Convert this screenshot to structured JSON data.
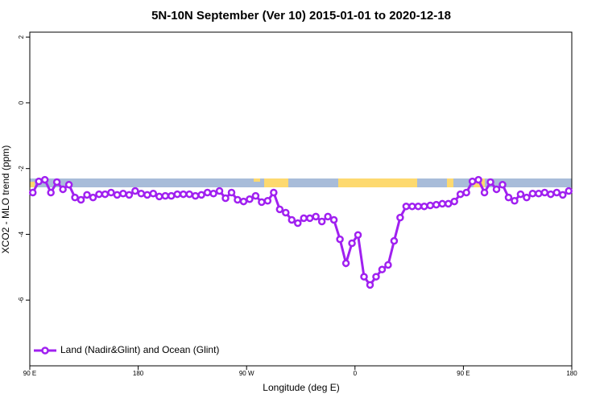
{
  "chart_data": {
    "type": "line",
    "title": "5N-10N September (Ver 10)   2015-01-01 to 2020-12-18",
    "xlabel": "Longitude (deg E)",
    "ylabel": "XCO2 - MLO trend (ppm)",
    "xlim": [
      90,
      540
    ],
    "xticks": [
      {
        "value": 90,
        "label": "90 E"
      },
      180,
      {
        "value": 270,
        "label": "90 W"
      },
      {
        "value": 360,
        "label": "0"
      },
      {
        "value": 450,
        "label": "90 E"
      },
      {
        "value": 540,
        "label": "180"
      }
    ],
    "ylim": [
      -8,
      2.15
    ],
    "yticks": [
      2,
      0,
      -2,
      -4,
      -6
    ],
    "legend": "bottom-left",
    "x": [
      92.5,
      97.5,
      102.5,
      107.5,
      112.5,
      117.5,
      122.5,
      127.5,
      132.5,
      137.5,
      142.5,
      147.5,
      152.5,
      157.5,
      162.5,
      167.5,
      172.5,
      177.5,
      182.5,
      187.5,
      192.5,
      197.5,
      202.5,
      207.5,
      212.5,
      217.5,
      222.5,
      227.5,
      232.5,
      237.5,
      242.5,
      247.5,
      252.5,
      257.5,
      262.5,
      267.5,
      272.5,
      277.5,
      282.5,
      287.5,
      292.5,
      297.5,
      302.5,
      307.5,
      312.5,
      317.5,
      322.5,
      327.5,
      332.5,
      337.5,
      342.5,
      347.5,
      352.5,
      357.5,
      362.5,
      367.5,
      372.5,
      377.5,
      382.5,
      387.5,
      392.5,
      397.5,
      402.5,
      407.5,
      412.5,
      417.5,
      422.5,
      427.5,
      432.5,
      437.5,
      442.5,
      447.5,
      452.5,
      457.5,
      462.5,
      467.5,
      472.5,
      477.5,
      482.5,
      487.5,
      492.5,
      497.5,
      502.5,
      507.5,
      512.5,
      517.5,
      522.5,
      527.5,
      532.5,
      537.5
    ],
    "series": [
      {
        "name": "Land (Nadir&Glint) and Ocean (Glint)",
        "color": "#a020f0",
        "values": [
          -2.73,
          -2.39,
          -2.34,
          -2.73,
          -2.41,
          -2.63,
          -2.49,
          -2.88,
          -2.95,
          -2.8,
          -2.88,
          -2.78,
          -2.78,
          -2.73,
          -2.8,
          -2.76,
          -2.8,
          -2.68,
          -2.76,
          -2.8,
          -2.76,
          -2.85,
          -2.83,
          -2.83,
          -2.78,
          -2.78,
          -2.78,
          -2.83,
          -2.8,
          -2.73,
          -2.76,
          -2.68,
          -2.9,
          -2.73,
          -2.95,
          -3.0,
          -2.93,
          -2.83,
          -3.02,
          -2.98,
          -2.73,
          -3.24,
          -3.34,
          -3.56,
          -3.66,
          -3.51,
          -3.51,
          -3.46,
          -3.61,
          -3.46,
          -3.56,
          -4.15,
          -4.88,
          -4.27,
          -4.02,
          -5.29,
          -5.54,
          -5.29,
          -5.07,
          -4.93,
          -4.2,
          -3.49,
          -3.15,
          -3.15,
          -3.15,
          -3.15,
          -3.12,
          -3.1,
          -3.07,
          -3.07,
          -3.0,
          -2.78,
          -2.73,
          -2.39,
          -2.34,
          -2.73,
          -2.41,
          -2.63,
          -2.49,
          -2.88,
          -2.98,
          -2.78,
          -2.88,
          -2.76,
          -2.76,
          -2.73,
          -2.78,
          -2.73,
          -2.8,
          -2.68
        ]
      }
    ]
  }
}
